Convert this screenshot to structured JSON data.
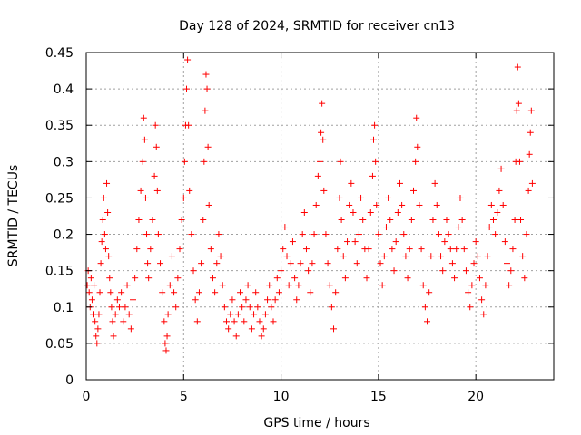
{
  "chart_data": {
    "type": "scatter",
    "title": "Day 128 of 2024, SRMTID for receiver cn13",
    "xlabel": "GPS time / hours",
    "ylabel": "SRMTID / TECUs",
    "xlim": [
      0,
      24
    ],
    "ylim": [
      0,
      0.45
    ],
    "xticks": [
      0,
      5,
      10,
      15,
      20
    ],
    "xtick_labels": [
      "0",
      "5",
      "10",
      "15",
      "20"
    ],
    "yticks": [
      0,
      0.05,
      0.1,
      0.15,
      0.2,
      0.25,
      0.3,
      0.35,
      0.4,
      0.45
    ],
    "ytick_labels": [
      "0",
      "0.05",
      "0.1",
      "0.15",
      "0.2",
      "0.25",
      "0.3",
      "0.35",
      "0.4",
      "0.45"
    ],
    "grid": true,
    "marker": "+",
    "marker_color": "#ff0000",
    "series": [
      {
        "name": "SRMTID",
        "points": [
          [
            0.05,
            0.13
          ],
          [
            0.1,
            0.15
          ],
          [
            0.15,
            0.12
          ],
          [
            0.2,
            0.1
          ],
          [
            0.25,
            0.14
          ],
          [
            0.3,
            0.11
          ],
          [
            0.35,
            0.09
          ],
          [
            0.4,
            0.13
          ],
          [
            0.45,
            0.08
          ],
          [
            0.5,
            0.06
          ],
          [
            0.55,
            0.05
          ],
          [
            0.6,
            0.07
          ],
          [
            0.65,
            0.09
          ],
          [
            0.7,
            0.12
          ],
          [
            0.75,
            0.16
          ],
          [
            0.8,
            0.19
          ],
          [
            0.85,
            0.22
          ],
          [
            0.9,
            0.25
          ],
          [
            0.95,
            0.2
          ],
          [
            1.0,
            0.18
          ],
          [
            1.05,
            0.27
          ],
          [
            1.1,
            0.23
          ],
          [
            1.15,
            0.17
          ],
          [
            1.2,
            0.14
          ],
          [
            1.25,
            0.12
          ],
          [
            1.3,
            0.1
          ],
          [
            1.35,
            0.08
          ],
          [
            1.4,
            0.06
          ],
          [
            1.5,
            0.09
          ],
          [
            1.6,
            0.11
          ],
          [
            1.7,
            0.1
          ],
          [
            1.8,
            0.12
          ],
          [
            1.9,
            0.08
          ],
          [
            2.0,
            0.1
          ],
          [
            2.1,
            0.13
          ],
          [
            2.2,
            0.09
          ],
          [
            2.3,
            0.07
          ],
          [
            2.4,
            0.11
          ],
          [
            2.5,
            0.14
          ],
          [
            2.6,
            0.18
          ],
          [
            2.7,
            0.22
          ],
          [
            2.8,
            0.26
          ],
          [
            2.9,
            0.3
          ],
          [
            2.95,
            0.36
          ],
          [
            3.0,
            0.33
          ],
          [
            3.05,
            0.25
          ],
          [
            3.1,
            0.2
          ],
          [
            3.15,
            0.16
          ],
          [
            3.2,
            0.14
          ],
          [
            3.3,
            0.18
          ],
          [
            3.4,
            0.22
          ],
          [
            3.5,
            0.28
          ],
          [
            3.55,
            0.35
          ],
          [
            3.6,
            0.32
          ],
          [
            3.65,
            0.26
          ],
          [
            3.7,
            0.2
          ],
          [
            3.8,
            0.16
          ],
          [
            3.9,
            0.12
          ],
          [
            4.0,
            0.08
          ],
          [
            4.05,
            0.05
          ],
          [
            4.1,
            0.04
          ],
          [
            4.15,
            0.06
          ],
          [
            4.2,
            0.09
          ],
          [
            4.3,
            0.13
          ],
          [
            4.4,
            0.17
          ],
          [
            4.5,
            0.12
          ],
          [
            4.6,
            0.1
          ],
          [
            4.7,
            0.14
          ],
          [
            4.8,
            0.18
          ],
          [
            4.9,
            0.22
          ],
          [
            5.0,
            0.25
          ],
          [
            5.05,
            0.3
          ],
          [
            5.1,
            0.35
          ],
          [
            5.15,
            0.4
          ],
          [
            5.2,
            0.44
          ],
          [
            5.25,
            0.35
          ],
          [
            5.3,
            0.26
          ],
          [
            5.4,
            0.2
          ],
          [
            5.5,
            0.15
          ],
          [
            5.6,
            0.11
          ],
          [
            5.7,
            0.08
          ],
          [
            5.8,
            0.12
          ],
          [
            5.9,
            0.16
          ],
          [
            6.0,
            0.22
          ],
          [
            6.05,
            0.3
          ],
          [
            6.1,
            0.37
          ],
          [
            6.15,
            0.42
          ],
          [
            6.2,
            0.4
          ],
          [
            6.25,
            0.32
          ],
          [
            6.3,
            0.24
          ],
          [
            6.4,
            0.18
          ],
          [
            6.5,
            0.14
          ],
          [
            6.6,
            0.12
          ],
          [
            6.7,
            0.16
          ],
          [
            6.8,
            0.2
          ],
          [
            6.9,
            0.17
          ],
          [
            7.0,
            0.13
          ],
          [
            7.1,
            0.1
          ],
          [
            7.2,
            0.08
          ],
          [
            7.3,
            0.07
          ],
          [
            7.4,
            0.09
          ],
          [
            7.5,
            0.11
          ],
          [
            7.6,
            0.08
          ],
          [
            7.7,
            0.06
          ],
          [
            7.8,
            0.09
          ],
          [
            7.9,
            0.12
          ],
          [
            8.0,
            0.1
          ],
          [
            8.1,
            0.08
          ],
          [
            8.2,
            0.11
          ],
          [
            8.3,
            0.13
          ],
          [
            8.4,
            0.1
          ],
          [
            8.5,
            0.07
          ],
          [
            8.6,
            0.09
          ],
          [
            8.7,
            0.12
          ],
          [
            8.8,
            0.1
          ],
          [
            8.9,
            0.08
          ],
          [
            9.0,
            0.06
          ],
          [
            9.1,
            0.07
          ],
          [
            9.2,
            0.09
          ],
          [
            9.3,
            0.11
          ],
          [
            9.4,
            0.13
          ],
          [
            9.5,
            0.1
          ],
          [
            9.6,
            0.08
          ],
          [
            9.7,
            0.11
          ],
          [
            9.8,
            0.14
          ],
          [
            9.9,
            0.12
          ],
          [
            10.0,
            0.15
          ],
          [
            10.1,
            0.18
          ],
          [
            10.2,
            0.21
          ],
          [
            10.3,
            0.17
          ],
          [
            10.4,
            0.13
          ],
          [
            10.5,
            0.16
          ],
          [
            10.6,
            0.19
          ],
          [
            10.7,
            0.14
          ],
          [
            10.8,
            0.11
          ],
          [
            10.9,
            0.13
          ],
          [
            11.0,
            0.16
          ],
          [
            11.1,
            0.2
          ],
          [
            11.2,
            0.23
          ],
          [
            11.3,
            0.18
          ],
          [
            11.4,
            0.15
          ],
          [
            11.5,
            0.12
          ],
          [
            11.6,
            0.16
          ],
          [
            11.7,
            0.2
          ],
          [
            11.8,
            0.24
          ],
          [
            11.9,
            0.28
          ],
          [
            12.0,
            0.3
          ],
          [
            12.05,
            0.34
          ],
          [
            12.1,
            0.38
          ],
          [
            12.15,
            0.33
          ],
          [
            12.2,
            0.26
          ],
          [
            12.3,
            0.2
          ],
          [
            12.4,
            0.16
          ],
          [
            12.5,
            0.13
          ],
          [
            12.6,
            0.1
          ],
          [
            12.7,
            0.07
          ],
          [
            12.8,
            0.12
          ],
          [
            12.9,
            0.18
          ],
          [
            13.0,
            0.25
          ],
          [
            13.05,
            0.3
          ],
          [
            13.1,
            0.22
          ],
          [
            13.2,
            0.17
          ],
          [
            13.3,
            0.14
          ],
          [
            13.4,
            0.19
          ],
          [
            13.5,
            0.24
          ],
          [
            13.6,
            0.27
          ],
          [
            13.7,
            0.23
          ],
          [
            13.8,
            0.19
          ],
          [
            13.9,
            0.16
          ],
          [
            14.0,
            0.2
          ],
          [
            14.1,
            0.25
          ],
          [
            14.2,
            0.22
          ],
          [
            14.3,
            0.18
          ],
          [
            14.4,
            0.14
          ],
          [
            14.5,
            0.18
          ],
          [
            14.6,
            0.23
          ],
          [
            14.7,
            0.28
          ],
          [
            14.75,
            0.33
          ],
          [
            14.8,
            0.35
          ],
          [
            14.85,
            0.3
          ],
          [
            14.9,
            0.24
          ],
          [
            15.0,
            0.2
          ],
          [
            15.1,
            0.16
          ],
          [
            15.2,
            0.13
          ],
          [
            15.3,
            0.17
          ],
          [
            15.4,
            0.21
          ],
          [
            15.5,
            0.25
          ],
          [
            15.6,
            0.22
          ],
          [
            15.7,
            0.18
          ],
          [
            15.8,
            0.15
          ],
          [
            15.9,
            0.19
          ],
          [
            16.0,
            0.23
          ],
          [
            16.1,
            0.27
          ],
          [
            16.2,
            0.24
          ],
          [
            16.3,
            0.2
          ],
          [
            16.4,
            0.17
          ],
          [
            16.5,
            0.14
          ],
          [
            16.6,
            0.18
          ],
          [
            16.7,
            0.22
          ],
          [
            16.8,
            0.26
          ],
          [
            16.9,
            0.3
          ],
          [
            16.95,
            0.36
          ],
          [
            17.0,
            0.32
          ],
          [
            17.1,
            0.24
          ],
          [
            17.2,
            0.18
          ],
          [
            17.3,
            0.13
          ],
          [
            17.4,
            0.1
          ],
          [
            17.5,
            0.08
          ],
          [
            17.6,
            0.12
          ],
          [
            17.7,
            0.17
          ],
          [
            17.8,
            0.22
          ],
          [
            17.9,
            0.27
          ],
          [
            18.0,
            0.24
          ],
          [
            18.1,
            0.2
          ],
          [
            18.2,
            0.17
          ],
          [
            18.3,
            0.15
          ],
          [
            18.4,
            0.19
          ],
          [
            18.5,
            0.22
          ],
          [
            18.6,
            0.2
          ],
          [
            18.7,
            0.18
          ],
          [
            18.8,
            0.16
          ],
          [
            18.9,
            0.14
          ],
          [
            19.0,
            0.18
          ],
          [
            19.1,
            0.21
          ],
          [
            19.2,
            0.25
          ],
          [
            19.3,
            0.22
          ],
          [
            19.4,
            0.18
          ],
          [
            19.5,
            0.15
          ],
          [
            19.6,
            0.12
          ],
          [
            19.7,
            0.1
          ],
          [
            19.8,
            0.13
          ],
          [
            19.9,
            0.16
          ],
          [
            20.0,
            0.19
          ],
          [
            20.1,
            0.17
          ],
          [
            20.2,
            0.14
          ],
          [
            20.3,
            0.11
          ],
          [
            20.4,
            0.09
          ],
          [
            20.5,
            0.13
          ],
          [
            20.6,
            0.17
          ],
          [
            20.7,
            0.21
          ],
          [
            20.8,
            0.24
          ],
          [
            20.9,
            0.22
          ],
          [
            21.0,
            0.2
          ],
          [
            21.1,
            0.23
          ],
          [
            21.2,
            0.26
          ],
          [
            21.3,
            0.29
          ],
          [
            21.4,
            0.24
          ],
          [
            21.5,
            0.19
          ],
          [
            21.6,
            0.16
          ],
          [
            21.7,
            0.13
          ],
          [
            21.8,
            0.15
          ],
          [
            21.9,
            0.18
          ],
          [
            22.0,
            0.22
          ],
          [
            22.05,
            0.3
          ],
          [
            22.1,
            0.37
          ],
          [
            22.15,
            0.43
          ],
          [
            22.2,
            0.38
          ],
          [
            22.25,
            0.3
          ],
          [
            22.3,
            0.22
          ],
          [
            22.4,
            0.17
          ],
          [
            22.5,
            0.14
          ],
          [
            22.6,
            0.2
          ],
          [
            22.7,
            0.26
          ],
          [
            22.75,
            0.31
          ],
          [
            22.8,
            0.34
          ],
          [
            22.85,
            0.37
          ],
          [
            22.9,
            0.27
          ]
        ]
      }
    ]
  }
}
